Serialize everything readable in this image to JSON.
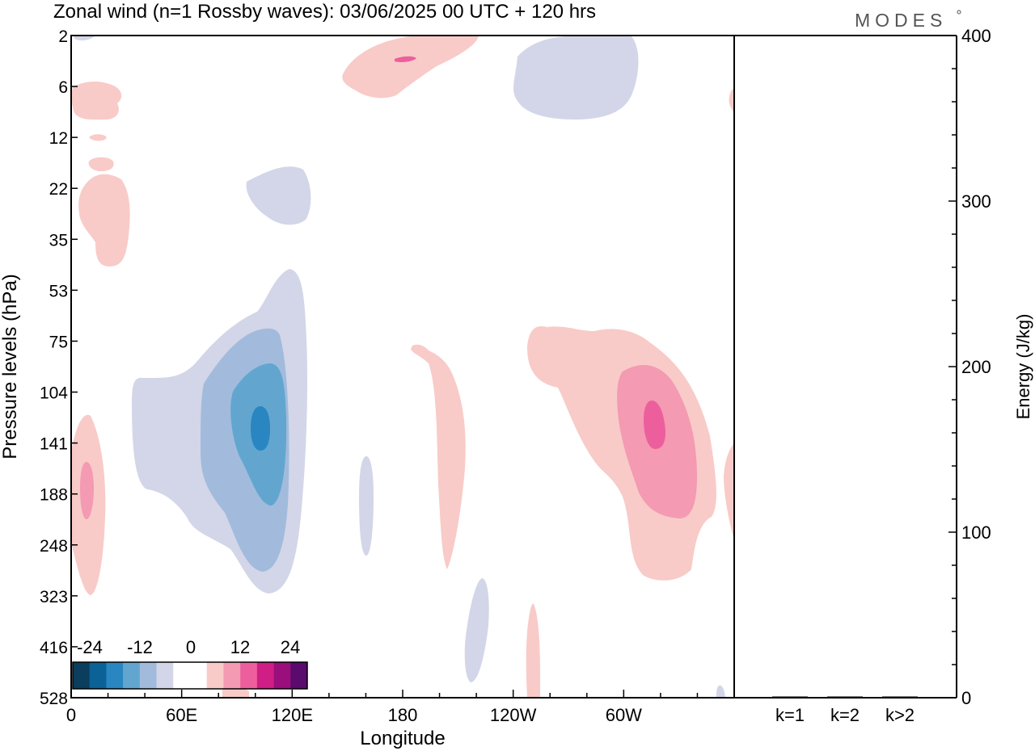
{
  "chart_data": {
    "type": "heatmap",
    "title": "Zonal wind (n=1 Rossby waves):  03/06/2025  00 UTC  + 120 hrs",
    "logo": "MODES",
    "xlabel": "Longitude",
    "ylabel": "Pressure levels (hPa)",
    "x_ticks": [
      "0",
      "60E",
      "120E",
      "180",
      "120W",
      "60W"
    ],
    "y_levels": [
      "2",
      "6",
      "12",
      "22",
      "35",
      "53",
      "75",
      "104",
      "141",
      "188",
      "248",
      "323",
      "416",
      "528"
    ],
    "colorbar": {
      "tick_labels": [
        "-24",
        "-12",
        "0",
        "12",
        "24"
      ],
      "colors": [
        "#0b3d5c",
        "#0b6296",
        "#2a86c0",
        "#62a6d0",
        "#a2bbdc",
        "#d3d6e8",
        "#ffffff",
        "#ffffff",
        "#f8cbc8",
        "#f49ab2",
        "#ec5f9c",
        "#cf1e85",
        "#9a0f7c",
        "#5b0a6e"
      ]
    },
    "energy_panel": {
      "ylabel": "Energy (J/kg)",
      "ylim": [
        0,
        400
      ],
      "y_ticks": [
        "0",
        "100",
        "200",
        "300",
        "400"
      ],
      "categories": [
        "k=1",
        "k=2",
        "k>2"
      ],
      "values": [
        0.5,
        0.2,
        0.3
      ]
    }
  }
}
